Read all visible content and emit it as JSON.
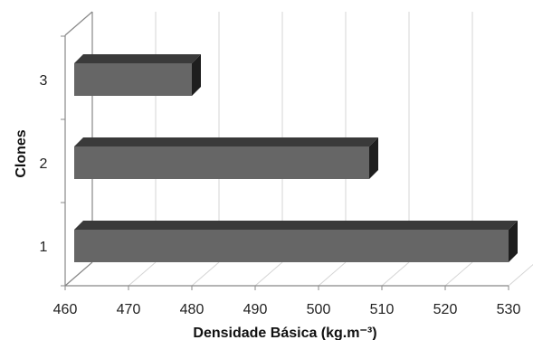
{
  "chart_data": {
    "type": "bar",
    "orientation": "horizontal",
    "style": "3d",
    "categories": [
      "1",
      "2",
      "3"
    ],
    "values": [
      530,
      508,
      480
    ],
    "xlabel": "Densidade Básica (kg.m⁻³)",
    "ylabel": "Clones",
    "xlim": [
      460,
      530
    ],
    "xticks": [
      "460",
      "470",
      "480",
      "490",
      "500",
      "510",
      "520",
      "530"
    ],
    "grid": true,
    "legend": "none",
    "colors": {
      "bar_front": "#666666",
      "bar_top": "#3a3a3a",
      "bar_side": "#1e1e1e",
      "grid": "#d4d4d4",
      "axis": "#888888"
    }
  }
}
